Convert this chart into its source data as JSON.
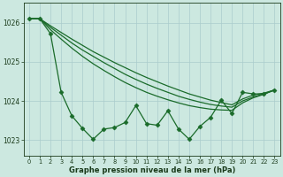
{
  "bg_color": "#cce8e0",
  "grid_color": "#aacccc",
  "line_color": "#1a6b2a",
  "xlim": [
    -0.5,
    23.5
  ],
  "ylim": [
    1022.6,
    1026.5
  ],
  "yticks": [
    1023,
    1024,
    1025,
    1026
  ],
  "xticks": [
    0,
    1,
    2,
    3,
    4,
    5,
    6,
    7,
    8,
    9,
    10,
    11,
    12,
    13,
    14,
    15,
    16,
    17,
    18,
    19,
    20,
    21,
    22,
    23
  ],
  "xlabel": "Graphe pression niveau de la mer (hPa)",
  "series_smooth1": [
    1026.1,
    1026.1,
    1025.92,
    1025.75,
    1025.58,
    1025.42,
    1025.26,
    1025.12,
    1024.98,
    1024.85,
    1024.72,
    1024.6,
    1024.49,
    1024.38,
    1024.28,
    1024.18,
    1024.1,
    1024.02,
    1023.96,
    1023.9,
    1024.05,
    1024.15,
    1024.2,
    1024.28
  ],
  "series_smooth2": [
    1026.1,
    1026.1,
    1025.88,
    1025.68,
    1025.48,
    1025.3,
    1025.14,
    1024.98,
    1024.83,
    1024.68,
    1024.55,
    1024.43,
    1024.32,
    1024.22,
    1024.12,
    1024.04,
    1023.97,
    1023.91,
    1023.87,
    1023.84,
    1024.0,
    1024.1,
    1024.18,
    1024.28
  ],
  "series_smooth3": [
    1026.1,
    1026.1,
    1025.82,
    1025.58,
    1025.35,
    1025.14,
    1024.95,
    1024.78,
    1024.62,
    1024.47,
    1024.34,
    1024.22,
    1024.12,
    1024.03,
    1023.95,
    1023.88,
    1023.83,
    1023.79,
    1023.77,
    1023.76,
    1023.95,
    1024.08,
    1024.17,
    1024.28
  ],
  "series_jagged": [
    1026.1,
    1026.1,
    1025.72,
    1024.22,
    1023.62,
    1023.3,
    1023.02,
    1023.28,
    1023.32,
    1023.45,
    1023.88,
    1023.42,
    1023.38,
    1023.75,
    1023.28,
    1023.02,
    1023.35,
    1023.58,
    1024.02,
    1023.68,
    1024.22,
    1024.18,
    1024.18,
    1024.28
  ],
  "marker": "D",
  "markersize": 2.5,
  "linewidth": 0.9
}
